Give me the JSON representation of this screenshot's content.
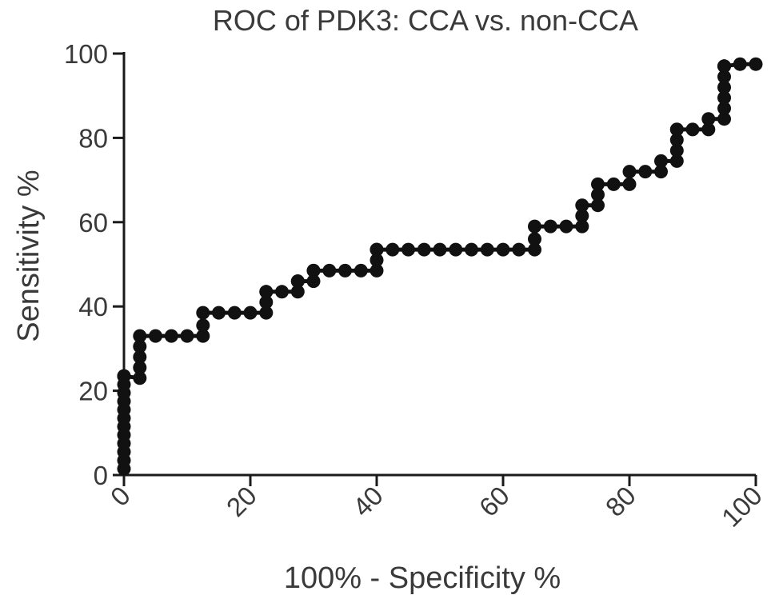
{
  "chart_data": {
    "type": "line",
    "title": "ROC of PDK3: CCA vs. non-CCA",
    "xlabel": "100%  - Specificity %",
    "ylabel": "Sensitivity %",
    "xlim": [
      0,
      100
    ],
    "ylim": [
      0,
      100
    ],
    "xticks": [
      "0",
      "20",
      "40",
      "60",
      "80",
      "100"
    ],
    "yticks": [
      "0",
      "20",
      "40",
      "60",
      "80",
      "100"
    ],
    "grid": false,
    "series": [
      {
        "x": [
          0,
          0,
          0,
          0,
          0,
          0,
          0,
          0,
          0,
          0,
          0,
          0,
          0,
          0,
          2.5,
          2.5,
          2.5,
          2.5,
          2.5,
          5,
          7.5,
          10,
          12.5,
          12.5,
          12.5,
          15,
          17.5,
          20,
          22.5,
          22.5,
          22.5,
          22.5,
          25,
          27.5,
          27.5,
          27.5,
          30,
          30,
          30,
          32.5,
          35,
          37.5,
          40,
          40,
          40,
          40,
          42.5,
          45,
          47.5,
          50,
          52.5,
          55,
          57.5,
          60,
          62.5,
          65,
          65,
          65,
          67.5,
          70,
          72.5,
          72.5,
          72.5,
          75,
          75,
          75,
          77.5,
          80,
          80,
          82.5,
          85,
          85,
          87.5,
          87.5,
          87.5,
          87.5,
          87.5,
          90,
          92.5,
          92.5,
          95,
          95,
          95,
          95,
          95,
          95,
          95,
          95,
          97.5,
          100
        ],
        "y": [
          1.5,
          3.5,
          5.5,
          7.5,
          9.5,
          11.5,
          13.5,
          15.5,
          17.5,
          19.5,
          21.5,
          23.5,
          23.5,
          23.5,
          23,
          25.5,
          28,
          30.5,
          33,
          33,
          33,
          33,
          33,
          35.5,
          38.5,
          38.5,
          38.5,
          38.5,
          38.5,
          41,
          43.5,
          43.5,
          43.5,
          43.5,
          46,
          46,
          46,
          48.5,
          48.5,
          48.5,
          48.5,
          48.5,
          48.5,
          51,
          53.5,
          53.5,
          53.5,
          53.5,
          53.5,
          53.5,
          53.5,
          53.5,
          53.5,
          53.5,
          53.5,
          53.5,
          56,
          59,
          59,
          59,
          59,
          61.5,
          64,
          64,
          66.5,
          69,
          69,
          69,
          72,
          72,
          72,
          74.5,
          74.5,
          77,
          79.5,
          82,
          82,
          82,
          82,
          84.5,
          84.5,
          87,
          89.5,
          92,
          94.5,
          97,
          97,
          97,
          97.5,
          97.5
        ]
      }
    ]
  }
}
